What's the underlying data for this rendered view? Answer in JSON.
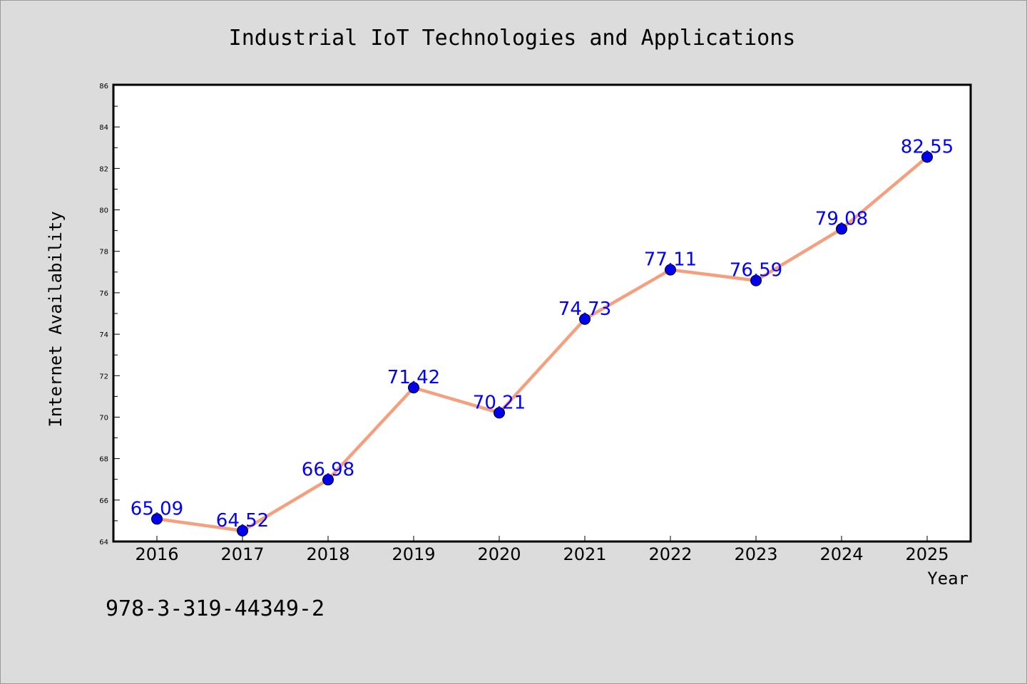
{
  "chart_data": {
    "type": "line",
    "title": "Industrial IoT Technologies and Applications",
    "xlabel": "Year",
    "ylabel": "Internet Availability",
    "categories": [
      "2016",
      "2017",
      "2018",
      "2019",
      "2020",
      "2021",
      "2022",
      "2023",
      "2024",
      "2025"
    ],
    "series": [
      {
        "values": [
          65.09,
          64.52,
          66.98,
          71.42,
          70.21,
          74.73,
          77.11,
          76.59,
          79.08,
          82.55
        ],
        "line_color": "#f4a07f",
        "marker_color": "#0000ee"
      }
    ],
    "data_labels": [
      "65.09",
      "64.52",
      "66.98",
      "71.42",
      "70.21",
      "74.73",
      "77.11",
      "76.59",
      "79.08",
      "82.55"
    ],
    "ylim": [
      64,
      86
    ],
    "yticks": [
      "64",
      "66",
      "68",
      "70",
      "72",
      "74",
      "76",
      "78",
      "80",
      "82",
      "84",
      "86"
    ],
    "grid": false,
    "legend": "none",
    "label_color": "#0000ff"
  },
  "footer": {
    "isbn": "978-3-319-44349-2"
  }
}
